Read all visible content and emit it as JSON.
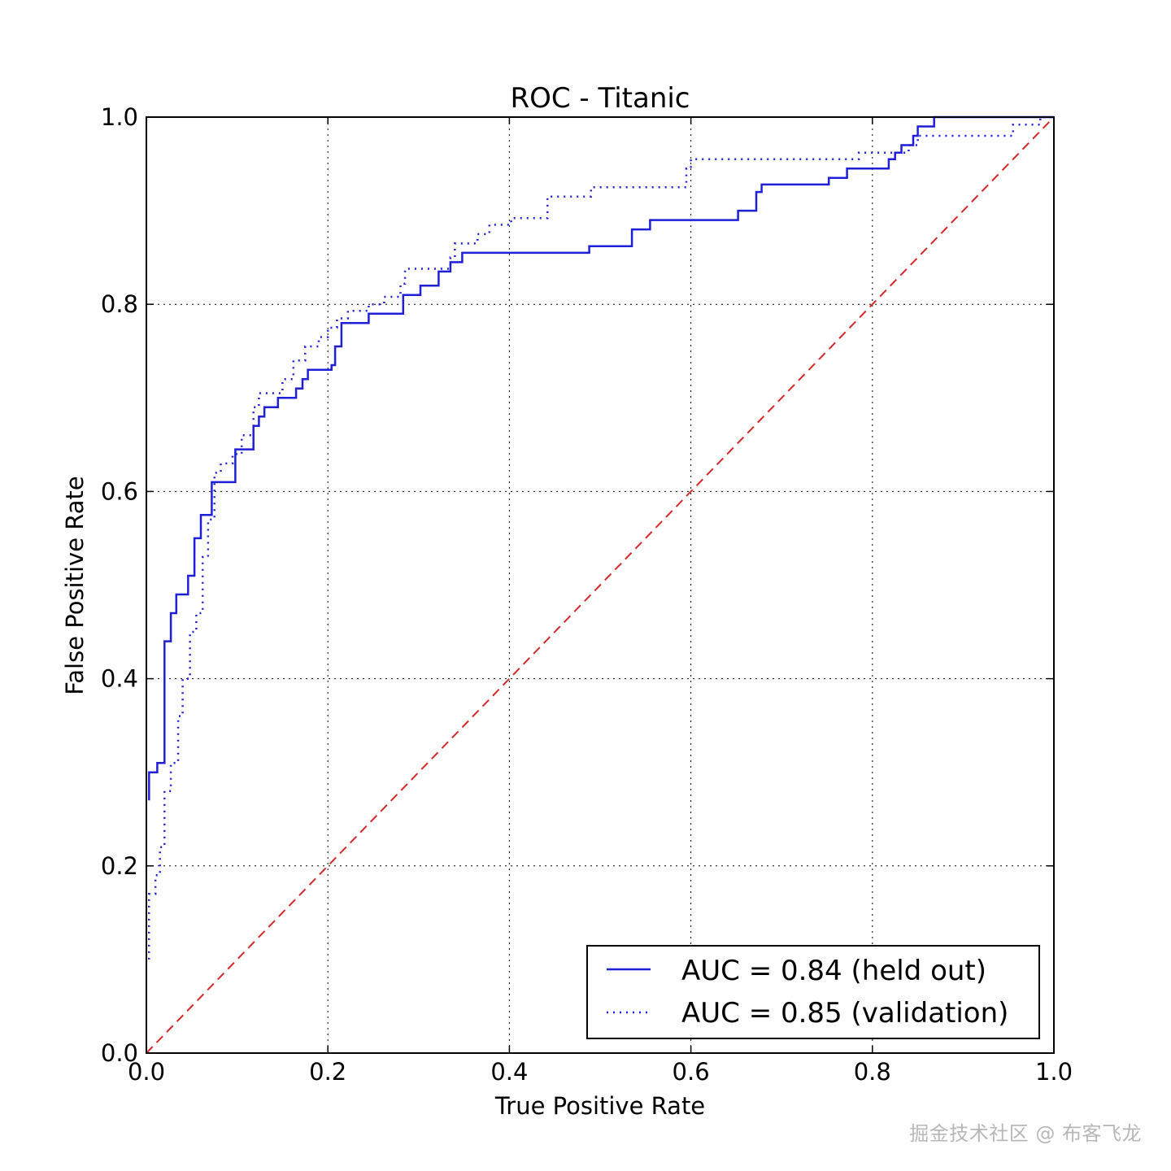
{
  "watermark": "掘金技术社区 @ 布客飞龙",
  "chart_data": {
    "type": "line",
    "title": "ROC - Titanic",
    "xlabel": "True Positive Rate",
    "ylabel": "False Positive Rate",
    "xlim": [
      0,
      1
    ],
    "ylim": [
      0,
      1
    ],
    "xticks": [
      "0.0",
      "0.2",
      "0.4",
      "0.6",
      "0.8",
      "1.0"
    ],
    "yticks": [
      "0.0",
      "0.2",
      "0.4",
      "0.6",
      "0.8",
      "1.0"
    ],
    "grid": true,
    "legend_position": "lower-right",
    "colors": {
      "series": "#1f1fd8",
      "baseline": "#d62728"
    },
    "series": [
      {
        "name": "AUC = 0.84 (held out)",
        "style": "solid",
        "points": [
          [
            0.003,
            0.27
          ],
          [
            0.003,
            0.3
          ],
          [
            0.012,
            0.3
          ],
          [
            0.012,
            0.31
          ],
          [
            0.02,
            0.31
          ],
          [
            0.02,
            0.44
          ],
          [
            0.027,
            0.44
          ],
          [
            0.027,
            0.47
          ],
          [
            0.033,
            0.47
          ],
          [
            0.033,
            0.49
          ],
          [
            0.046,
            0.49
          ],
          [
            0.046,
            0.51
          ],
          [
            0.053,
            0.51
          ],
          [
            0.053,
            0.55
          ],
          [
            0.06,
            0.55
          ],
          [
            0.06,
            0.575
          ],
          [
            0.072,
            0.575
          ],
          [
            0.072,
            0.61
          ],
          [
            0.098,
            0.61
          ],
          [
            0.098,
            0.645
          ],
          [
            0.118,
            0.645
          ],
          [
            0.118,
            0.67
          ],
          [
            0.124,
            0.67
          ],
          [
            0.124,
            0.68
          ],
          [
            0.13,
            0.68
          ],
          [
            0.13,
            0.69
          ],
          [
            0.145,
            0.69
          ],
          [
            0.145,
            0.7
          ],
          [
            0.165,
            0.7
          ],
          [
            0.165,
            0.71
          ],
          [
            0.172,
            0.71
          ],
          [
            0.172,
            0.72
          ],
          [
            0.178,
            0.72
          ],
          [
            0.178,
            0.73
          ],
          [
            0.204,
            0.73
          ],
          [
            0.204,
            0.735
          ],
          [
            0.208,
            0.735
          ],
          [
            0.208,
            0.755
          ],
          [
            0.215,
            0.755
          ],
          [
            0.215,
            0.78
          ],
          [
            0.245,
            0.78
          ],
          [
            0.245,
            0.79
          ],
          [
            0.283,
            0.79
          ],
          [
            0.283,
            0.81
          ],
          [
            0.302,
            0.81
          ],
          [
            0.302,
            0.82
          ],
          [
            0.322,
            0.82
          ],
          [
            0.322,
            0.835
          ],
          [
            0.335,
            0.835
          ],
          [
            0.335,
            0.845
          ],
          [
            0.348,
            0.845
          ],
          [
            0.348,
            0.855
          ],
          [
            0.488,
            0.855
          ],
          [
            0.488,
            0.862
          ],
          [
            0.535,
            0.862
          ],
          [
            0.535,
            0.88
          ],
          [
            0.555,
            0.88
          ],
          [
            0.555,
            0.89
          ],
          [
            0.652,
            0.89
          ],
          [
            0.652,
            0.9
          ],
          [
            0.672,
            0.9
          ],
          [
            0.672,
            0.92
          ],
          [
            0.678,
            0.92
          ],
          [
            0.678,
            0.928
          ],
          [
            0.752,
            0.928
          ],
          [
            0.752,
            0.935
          ],
          [
            0.772,
            0.935
          ],
          [
            0.772,
            0.945
          ],
          [
            0.818,
            0.945
          ],
          [
            0.818,
            0.955
          ],
          [
            0.825,
            0.955
          ],
          [
            0.825,
            0.962
          ],
          [
            0.832,
            0.962
          ],
          [
            0.832,
            0.97
          ],
          [
            0.845,
            0.97
          ],
          [
            0.845,
            0.98
          ],
          [
            0.85,
            0.98
          ],
          [
            0.85,
            0.99
          ],
          [
            0.868,
            0.99
          ],
          [
            0.868,
            1.0
          ],
          [
            1.0,
            1.0
          ]
        ]
      },
      {
        "name": "AUC = 0.85 (validation)",
        "style": "dotted",
        "points": [
          [
            0.003,
            0.1
          ],
          [
            0.003,
            0.17
          ],
          [
            0.01,
            0.17
          ],
          [
            0.01,
            0.19
          ],
          [
            0.015,
            0.19
          ],
          [
            0.015,
            0.22
          ],
          [
            0.02,
            0.22
          ],
          [
            0.02,
            0.28
          ],
          [
            0.027,
            0.28
          ],
          [
            0.027,
            0.31
          ],
          [
            0.035,
            0.31
          ],
          [
            0.035,
            0.36
          ],
          [
            0.04,
            0.36
          ],
          [
            0.04,
            0.4
          ],
          [
            0.048,
            0.4
          ],
          [
            0.048,
            0.45
          ],
          [
            0.055,
            0.45
          ],
          [
            0.055,
            0.47
          ],
          [
            0.062,
            0.47
          ],
          [
            0.062,
            0.53
          ],
          [
            0.068,
            0.53
          ],
          [
            0.068,
            0.57
          ],
          [
            0.075,
            0.57
          ],
          [
            0.075,
            0.62
          ],
          [
            0.082,
            0.62
          ],
          [
            0.082,
            0.63
          ],
          [
            0.095,
            0.63
          ],
          [
            0.095,
            0.64
          ],
          [
            0.105,
            0.64
          ],
          [
            0.105,
            0.66
          ],
          [
            0.118,
            0.66
          ],
          [
            0.118,
            0.69
          ],
          [
            0.124,
            0.69
          ],
          [
            0.124,
            0.705
          ],
          [
            0.15,
            0.705
          ],
          [
            0.15,
            0.72
          ],
          [
            0.162,
            0.72
          ],
          [
            0.162,
            0.74
          ],
          [
            0.175,
            0.74
          ],
          [
            0.175,
            0.755
          ],
          [
            0.19,
            0.755
          ],
          [
            0.19,
            0.765
          ],
          [
            0.2,
            0.765
          ],
          [
            0.2,
            0.775
          ],
          [
            0.21,
            0.775
          ],
          [
            0.21,
            0.785
          ],
          [
            0.222,
            0.785
          ],
          [
            0.222,
            0.793
          ],
          [
            0.245,
            0.793
          ],
          [
            0.245,
            0.8
          ],
          [
            0.262,
            0.8
          ],
          [
            0.262,
            0.808
          ],
          [
            0.28,
            0.808
          ],
          [
            0.28,
            0.822
          ],
          [
            0.285,
            0.822
          ],
          [
            0.285,
            0.838
          ],
          [
            0.335,
            0.838
          ],
          [
            0.335,
            0.85
          ],
          [
            0.34,
            0.85
          ],
          [
            0.34,
            0.865
          ],
          [
            0.365,
            0.865
          ],
          [
            0.365,
            0.875
          ],
          [
            0.378,
            0.875
          ],
          [
            0.378,
            0.885
          ],
          [
            0.402,
            0.885
          ],
          [
            0.402,
            0.892
          ],
          [
            0.442,
            0.892
          ],
          [
            0.442,
            0.915
          ],
          [
            0.49,
            0.915
          ],
          [
            0.49,
            0.925
          ],
          [
            0.595,
            0.925
          ],
          [
            0.595,
            0.945
          ],
          [
            0.6,
            0.945
          ],
          [
            0.6,
            0.955
          ],
          [
            0.785,
            0.955
          ],
          [
            0.785,
            0.962
          ],
          [
            0.84,
            0.962
          ],
          [
            0.84,
            0.97
          ],
          [
            0.85,
            0.97
          ],
          [
            0.85,
            0.98
          ],
          [
            0.955,
            0.98
          ],
          [
            0.955,
            0.992
          ],
          [
            0.985,
            0.992
          ],
          [
            0.985,
            1.0
          ],
          [
            1.0,
            1.0
          ]
        ]
      }
    ],
    "baseline": {
      "style": "dashed",
      "points": [
        [
          0,
          0
        ],
        [
          1,
          1
        ]
      ]
    }
  }
}
